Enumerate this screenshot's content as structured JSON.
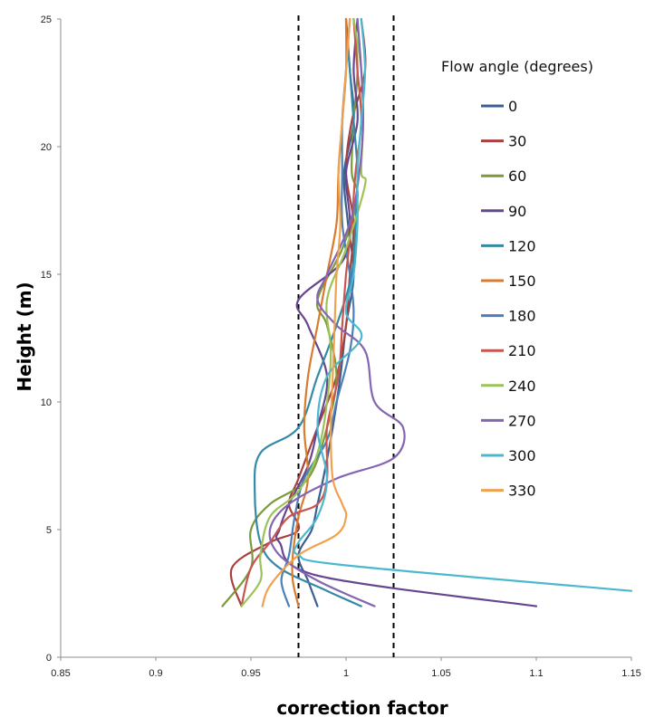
{
  "chart_data": {
    "type": "line",
    "title": "",
    "xlabel": "correction factor",
    "ylabel": "Height (m)",
    "xlim": [
      0.85,
      1.15
    ],
    "ylim": [
      0,
      25
    ],
    "x_ticks": [
      "0.85",
      "0.9",
      "0.95",
      "1",
      "1.05",
      "1.1",
      "1.15"
    ],
    "y_ticks": [
      "0",
      "5",
      "10",
      "15",
      "20",
      "25"
    ],
    "grid": false,
    "legend": {
      "title": "Flow angle (degrees)",
      "position": "right"
    },
    "reference_lines": [
      {
        "x": 0.975,
        "style": "dashed",
        "color": "#000000"
      },
      {
        "x": 1.025,
        "style": "dashed",
        "color": "#000000"
      }
    ],
    "series": [
      {
        "name": "0",
        "color": "#3b5f91",
        "points": [
          [
            1.0,
            25
          ],
          [
            1.002,
            23
          ],
          [
            1.004,
            21
          ],
          [
            0.999,
            19
          ],
          [
            1.001,
            17
          ],
          [
            1.004,
            15
          ],
          [
            1.0,
            13
          ],
          [
            0.997,
            11
          ],
          [
            0.993,
            9
          ],
          [
            0.988,
            7
          ],
          [
            0.985,
            6
          ],
          [
            0.982,
            5
          ],
          [
            0.975,
            4
          ],
          [
            0.98,
            3
          ],
          [
            0.985,
            2
          ]
        ]
      },
      {
        "name": "30",
        "color": "#a8403d",
        "points": [
          [
            1.008,
            25
          ],
          [
            1.01,
            23
          ],
          [
            1.003,
            21
          ],
          [
            1.0,
            19
          ],
          [
            1.004,
            17
          ],
          [
            1.002,
            15
          ],
          [
            1.0,
            13
          ],
          [
            0.995,
            11
          ],
          [
            0.985,
            9
          ],
          [
            0.975,
            7
          ],
          [
            0.97,
            6
          ],
          [
            0.975,
            5
          ],
          [
            0.96,
            4.5
          ],
          [
            0.94,
            3.5
          ],
          [
            0.945,
            2
          ]
        ]
      },
      {
        "name": "60",
        "color": "#7b9a3a",
        "points": [
          [
            1.004,
            25
          ],
          [
            1.006,
            23
          ],
          [
            1.004,
            21
          ],
          [
            1.003,
            19
          ],
          [
            1.006,
            18
          ],
          [
            0.998,
            16
          ],
          [
            0.985,
            14
          ],
          [
            0.99,
            13
          ],
          [
            0.995,
            11
          ],
          [
            0.99,
            9
          ],
          [
            0.98,
            7
          ],
          [
            0.96,
            6
          ],
          [
            0.95,
            5
          ],
          [
            0.95,
            3.5
          ],
          [
            0.935,
            2
          ]
        ]
      },
      {
        "name": "90",
        "color": "#66468f",
        "points": [
          [
            1.006,
            25
          ],
          [
            1.004,
            23
          ],
          [
            1.006,
            21
          ],
          [
            1.0,
            19
          ],
          [
            1.002,
            17
          ],
          [
            0.998,
            15.5
          ],
          [
            0.975,
            14
          ],
          [
            0.98,
            13
          ],
          [
            0.99,
            11
          ],
          [
            0.985,
            9
          ],
          [
            0.98,
            7.5
          ],
          [
            0.97,
            6
          ],
          [
            0.965,
            5
          ],
          [
            0.965,
            4.5
          ],
          [
            0.985,
            3.2
          ],
          [
            1.1,
            2
          ]
        ]
      },
      {
        "name": "120",
        "color": "#3489a6",
        "points": [
          [
            1.0,
            25
          ],
          [
            1.002,
            23
          ],
          [
            1.004,
            21
          ],
          [
            1.006,
            19
          ],
          [
            1.005,
            17
          ],
          [
            1.003,
            15
          ],
          [
            0.995,
            13
          ],
          [
            0.985,
            11
          ],
          [
            0.975,
            9
          ],
          [
            0.955,
            8
          ],
          [
            0.952,
            6.5
          ],
          [
            0.955,
            4.5
          ],
          [
            0.965,
            3.5
          ],
          [
            0.99,
            2.6
          ],
          [
            1.008,
            2
          ]
        ]
      },
      {
        "name": "150",
        "color": "#d97b2e",
        "points": [
          [
            1.0,
            25
          ],
          [
            1.0,
            23
          ],
          [
            0.998,
            21
          ],
          [
            0.996,
            19
          ],
          [
            0.995,
            17
          ],
          [
            0.99,
            15
          ],
          [
            0.985,
            13
          ],
          [
            0.98,
            11
          ],
          [
            0.978,
            9
          ],
          [
            0.98,
            7
          ],
          [
            0.975,
            5.5
          ],
          [
            0.972,
            4
          ],
          [
            0.972,
            3
          ],
          [
            0.975,
            2
          ]
        ]
      },
      {
        "name": "180",
        "color": "#4a7fb8",
        "points": [
          [
            1.002,
            25
          ],
          [
            1.0,
            23
          ],
          [
            0.998,
            21
          ],
          [
            0.998,
            19
          ],
          [
            0.998,
            17
          ],
          [
            1.002,
            15
          ],
          [
            1.004,
            13.5
          ],
          [
            1.002,
            12
          ],
          [
            0.995,
            10
          ],
          [
            0.99,
            8.5
          ],
          [
            0.978,
            7
          ],
          [
            0.973,
            5.5
          ],
          [
            0.97,
            4
          ],
          [
            0.966,
            3
          ],
          [
            0.97,
            2
          ]
        ]
      },
      {
        "name": "210",
        "color": "#c8564f",
        "points": [
          [
            1.004,
            25
          ],
          [
            1.006,
            23
          ],
          [
            1.008,
            21
          ],
          [
            1.005,
            19
          ],
          [
            1.003,
            17
          ],
          [
            1.0,
            15
          ],
          [
            0.998,
            13
          ],
          [
            0.996,
            11
          ],
          [
            0.99,
            9
          ],
          [
            0.99,
            7
          ],
          [
            0.985,
            6
          ],
          [
            0.97,
            5.5
          ],
          [
            0.96,
            4.5
          ],
          [
            0.95,
            3.5
          ],
          [
            0.945,
            2
          ]
        ]
      },
      {
        "name": "240",
        "color": "#9cc25a",
        "points": [
          [
            1.004,
            25
          ],
          [
            1.008,
            23
          ],
          [
            1.009,
            21
          ],
          [
            1.008,
            19
          ],
          [
            1.01,
            18.5
          ],
          [
            1.0,
            16
          ],
          [
            0.99,
            14
          ],
          [
            0.992,
            12
          ],
          [
            0.99,
            10
          ],
          [
            0.985,
            8
          ],
          [
            0.975,
            6.5
          ],
          [
            0.96,
            5.5
          ],
          [
            0.955,
            4
          ],
          [
            0.955,
            3
          ],
          [
            0.945,
            2
          ]
        ]
      },
      {
        "name": "270",
        "color": "#8465b1",
        "points": [
          [
            1.006,
            25
          ],
          [
            1.008,
            23
          ],
          [
            1.009,
            21
          ],
          [
            1.007,
            19
          ],
          [
            1.002,
            17
          ],
          [
            0.99,
            15
          ],
          [
            0.985,
            14
          ],
          [
            0.995,
            13
          ],
          [
            1.01,
            12
          ],
          [
            1.015,
            10
          ],
          [
            1.03,
            9
          ],
          [
            1.025,
            7.8
          ],
          [
            0.995,
            7
          ],
          [
            0.97,
            6
          ],
          [
            0.96,
            5
          ],
          [
            0.965,
            4
          ],
          [
            0.985,
            3
          ],
          [
            1.015,
            2
          ]
        ]
      },
      {
        "name": "300",
        "color": "#4bb8cf",
        "points": [
          [
            1.008,
            25
          ],
          [
            1.01,
            23
          ],
          [
            1.008,
            21
          ],
          [
            1.006,
            19
          ],
          [
            1.006,
            17
          ],
          [
            1.004,
            15
          ],
          [
            1.0,
            13.5
          ],
          [
            1.008,
            12.5
          ],
          [
            0.99,
            11
          ],
          [
            0.985,
            9
          ],
          [
            0.99,
            7
          ],
          [
            0.985,
            5.5
          ],
          [
            0.975,
            4.5
          ],
          [
            0.975,
            4
          ],
          [
            1.0,
            3.6
          ],
          [
            1.15,
            2.6
          ]
        ]
      },
      {
        "name": "330",
        "color": "#f0a14e",
        "points": [
          [
            1.002,
            25
          ],
          [
            1.0,
            23
          ],
          [
            0.998,
            21
          ],
          [
            0.996,
            19
          ],
          [
            0.997,
            17
          ],
          [
            0.995,
            15
          ],
          [
            0.994,
            13
          ],
          [
            0.993,
            11
          ],
          [
            0.992,
            9
          ],
          [
            0.993,
            7
          ],
          [
            0.998,
            6
          ],
          [
            1.0,
            5.5
          ],
          [
            0.995,
            4.8
          ],
          [
            0.975,
            4
          ],
          [
            0.96,
            2.8
          ],
          [
            0.956,
            2
          ]
        ]
      }
    ]
  }
}
